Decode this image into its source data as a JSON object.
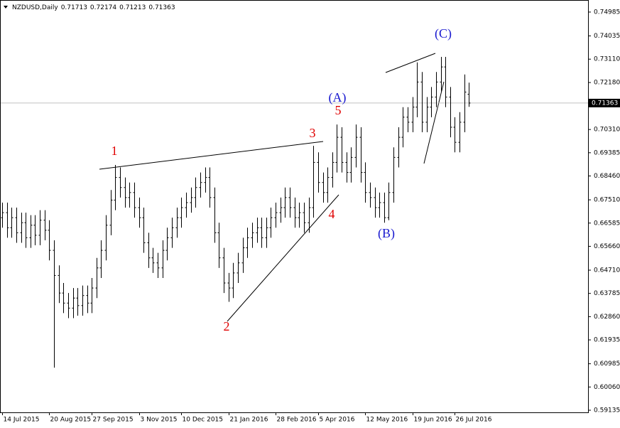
{
  "chart_data": {
    "type": "ohlc",
    "title": "NZDUSD,Daily",
    "header_values": [
      0.71713,
      0.72174,
      0.71213,
      0.71363
    ],
    "last_price": 0.71363,
    "color": "#000000",
    "ylim": [
      0.5905,
      0.7538
    ],
    "yticks": [
      0.74985,
      0.74035,
      {
        "value": 0.7311,
        "label": "0.73110"
      },
      {
        "value": 0.7218,
        "label": "0.72180"
      },
      {
        "value": 0.7031,
        "label": "0.70310"
      },
      0.69385,
      {
        "value": 0.6846,
        "label": "0.68460"
      },
      {
        "value": 0.6751,
        "label": "0.67510"
      },
      0.66585,
      {
        "value": 0.6566,
        "label": "0.65660"
      },
      {
        "value": 0.6471,
        "label": "0.64710"
      },
      0.63785,
      {
        "value": 0.6286,
        "label": "0.62860"
      },
      0.61935,
      0.60985,
      {
        "value": 0.6006,
        "label": "0.60060"
      },
      0.59135
    ],
    "categories": [
      "14 Jul 2015",
      null,
      null,
      null,
      null,
      null,
      null,
      null,
      null,
      null,
      "20 Aug 2015",
      null,
      null,
      null,
      null,
      null,
      null,
      null,
      null,
      "27 Sep 2015",
      null,
      null,
      null,
      null,
      null,
      null,
      null,
      null,
      null,
      "3 Nov 2015",
      null,
      null,
      null,
      null,
      null,
      null,
      null,
      null,
      "10 Dec 2015",
      null,
      null,
      null,
      null,
      null,
      null,
      null,
      null,
      null,
      "21 Jan 2016",
      null,
      null,
      null,
      null,
      null,
      null,
      null,
      null,
      null,
      "28 Feb 2016",
      null,
      null,
      null,
      null,
      null,
      null,
      null,
      null,
      "5 Apr 2016",
      null,
      null,
      null,
      null,
      null,
      null,
      null,
      null,
      null,
      "12 May 2016",
      null,
      null,
      null,
      null,
      null,
      null,
      null,
      null,
      null,
      "19 Jun 2016",
      null,
      null,
      null,
      null,
      null,
      null,
      null,
      null,
      "26 Jul 2016",
      null,
      null,
      null
    ],
    "open": [
      0.668,
      0.67,
      0.664,
      0.668,
      0.662,
      0.666,
      0.66,
      0.665,
      0.661,
      0.667,
      0.663,
      0.655,
      0.645,
      0.638,
      0.634,
      0.632,
      0.636,
      0.633,
      0.637,
      0.634,
      0.64,
      0.648,
      0.655,
      0.665,
      0.675,
      0.684,
      0.68,
      0.676,
      0.678,
      0.672,
      0.668,
      0.658,
      0.652,
      0.65,
      0.648,
      0.655,
      0.66,
      0.664,
      0.668,
      0.672,
      0.674,
      0.676,
      0.68,
      0.682,
      0.684,
      0.676,
      0.662,
      0.652,
      0.642,
      0.64,
      0.646,
      0.65,
      0.656,
      0.66,
      0.662,
      0.664,
      0.66,
      0.664,
      0.668,
      0.67,
      0.672,
      0.676,
      0.672,
      0.668,
      0.67,
      0.666,
      0.672,
      0.69,
      0.682,
      0.678,
      0.684,
      0.69,
      0.7,
      0.69,
      0.686,
      0.692,
      0.7,
      0.686,
      0.678,
      0.676,
      0.672,
      0.674,
      0.668,
      0.678,
      0.692,
      0.7,
      0.708,
      0.706,
      0.712,
      0.722,
      0.706,
      0.712,
      0.716,
      0.722,
      0.728,
      0.716,
      0.704,
      0.698,
      0.706,
      0.71713
    ],
    "high": [
      0.674,
      0.674,
      0.672,
      0.672,
      0.67,
      0.67,
      0.669,
      0.669,
      0.671,
      0.671,
      0.667,
      0.659,
      0.649,
      0.642,
      0.638,
      0.64,
      0.64,
      0.641,
      0.641,
      0.644,
      0.652,
      0.659,
      0.669,
      0.679,
      0.689,
      0.688,
      0.684,
      0.682,
      0.682,
      0.676,
      0.672,
      0.662,
      0.656,
      0.654,
      0.659,
      0.664,
      0.668,
      0.672,
      0.676,
      0.678,
      0.68,
      0.684,
      0.686,
      0.688,
      0.688,
      0.68,
      0.666,
      0.656,
      0.646,
      0.65,
      0.654,
      0.66,
      0.664,
      0.666,
      0.668,
      0.668,
      0.668,
      0.672,
      0.674,
      0.676,
      0.68,
      0.68,
      0.676,
      0.674,
      0.674,
      0.676,
      0.6966,
      0.694,
      0.686,
      0.688,
      0.694,
      0.7051,
      0.704,
      0.694,
      0.696,
      0.7051,
      0.704,
      0.69,
      0.682,
      0.68,
      0.678,
      0.678,
      0.682,
      0.696,
      0.704,
      0.712,
      0.712,
      0.716,
      0.7298,
      0.726,
      0.716,
      0.72,
      0.726,
      0.732,
      0.732,
      0.72,
      0.708,
      0.71,
      0.725,
      0.72174
    ],
    "low": [
      0.664,
      0.66,
      0.66,
      0.658,
      0.658,
      0.656,
      0.656,
      0.657,
      0.657,
      0.659,
      0.651,
      0.6083,
      0.634,
      0.63,
      0.628,
      0.628,
      0.629,
      0.629,
      0.63,
      0.63,
      0.636,
      0.644,
      0.651,
      0.661,
      0.671,
      0.676,
      0.672,
      0.672,
      0.668,
      0.664,
      0.654,
      0.648,
      0.646,
      0.644,
      0.644,
      0.651,
      0.656,
      0.66,
      0.664,
      0.668,
      0.67,
      0.672,
      0.676,
      0.678,
      0.672,
      0.658,
      0.648,
      0.638,
      0.6345,
      0.636,
      0.642,
      0.646,
      0.652,
      0.656,
      0.658,
      0.656,
      0.656,
      0.66,
      0.664,
      0.666,
      0.668,
      0.668,
      0.664,
      0.664,
      0.662,
      0.662,
      0.668,
      0.678,
      0.674,
      0.674,
      0.68,
      0.686,
      0.686,
      0.682,
      0.682,
      0.688,
      0.682,
      0.674,
      0.672,
      0.668,
      0.668,
      0.666,
      0.667,
      0.674,
      0.688,
      0.696,
      0.702,
      0.702,
      0.708,
      0.702,
      0.702,
      0.708,
      0.712,
      0.718,
      0.712,
      0.7,
      0.694,
      0.694,
      0.702,
      0.71213
    ],
    "close": [
      0.67,
      0.664,
      0.668,
      0.662,
      0.666,
      0.66,
      0.665,
      0.661,
      0.667,
      0.663,
      0.655,
      0.645,
      0.638,
      0.634,
      0.632,
      0.636,
      0.633,
      0.637,
      0.634,
      0.64,
      0.648,
      0.655,
      0.665,
      0.675,
      0.684,
      0.68,
      0.676,
      0.678,
      0.672,
      0.668,
      0.658,
      0.652,
      0.65,
      0.648,
      0.655,
      0.66,
      0.664,
      0.668,
      0.672,
      0.674,
      0.676,
      0.68,
      0.682,
      0.684,
      0.676,
      0.662,
      0.652,
      0.642,
      0.64,
      0.646,
      0.65,
      0.656,
      0.66,
      0.662,
      0.664,
      0.66,
      0.664,
      0.668,
      0.67,
      0.672,
      0.676,
      0.672,
      0.668,
      0.67,
      0.666,
      0.672,
      0.69,
      0.682,
      0.678,
      0.684,
      0.69,
      0.7,
      0.69,
      0.686,
      0.692,
      0.7,
      0.686,
      0.678,
      0.676,
      0.672,
      0.674,
      0.668,
      0.678,
      0.692,
      0.7,
      0.708,
      0.706,
      0.712,
      0.722,
      0.706,
      0.712,
      0.716,
      0.722,
      0.728,
      0.716,
      0.704,
      0.698,
      0.706,
      0.718,
      0.71363
    ],
    "annotations": [
      {
        "text": "1",
        "color": "#e00000"
      },
      {
        "text": "2",
        "color": "#e00000"
      },
      {
        "text": "3",
        "color": "#e00000"
      },
      {
        "text": "4",
        "color": "#e00000"
      },
      {
        "text": "5",
        "color": "#e00000"
      },
      {
        "text": "(A)",
        "color": "#1a1ad0"
      },
      {
        "text": "(B)",
        "color": "#1a1ad0"
      },
      {
        "text": "(C)",
        "color": "#1a1ad0"
      }
    ]
  }
}
